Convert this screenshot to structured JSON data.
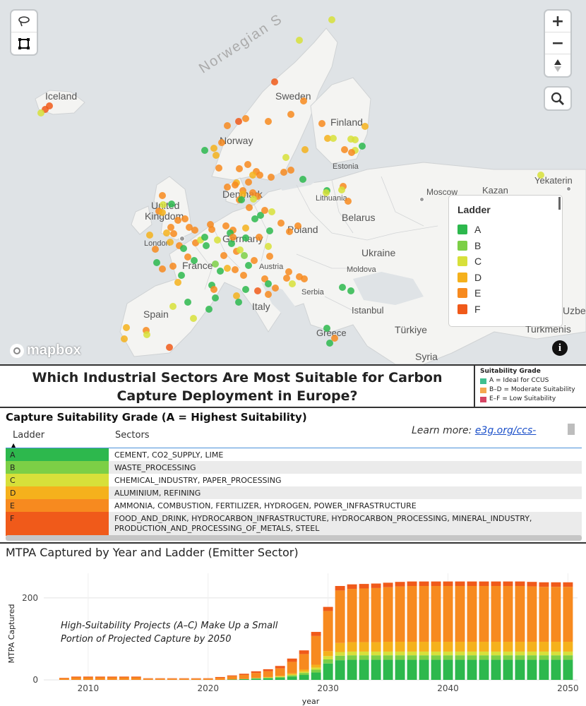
{
  "map": {
    "labels": {
      "sea": "Norwegian S",
      "iceland": "Iceland",
      "sweden": "Sweden",
      "finland": "Finland",
      "norway": "Norway",
      "estonia": "Estonia",
      "denmark": "Denmark",
      "lithuania": "Lithuania",
      "moscow": "Moscow",
      "kazan": "Kazan",
      "yekaterin": "Yekaterin",
      "uk1": "United",
      "uk2": "Kingdom",
      "belarus": "Belarus",
      "london": "London",
      "poland": "Poland",
      "germany": "Germany",
      "ukraine": "Ukraine",
      "france": "France",
      "austria": "Austria",
      "moldova": "Moldova",
      "serbia": "Serbia",
      "italy": "Italy",
      "spain": "Spain",
      "istanbul": "Istanbul",
      "turkiye": "Türkiye",
      "greece": "Greece",
      "turkmenis": "Turkmenis",
      "syria": "Syria",
      "uzbe": "Uzbe"
    },
    "controls": {
      "zoom_in": "+",
      "zoom_out": "−"
    },
    "attribution": "mapbox",
    "info": "i",
    "legend": {
      "title": "Ladder",
      "items": [
        {
          "label": "A",
          "color": "#2db84d"
        },
        {
          "label": "B",
          "color": "#7ccf46"
        },
        {
          "label": "C",
          "color": "#d7e03a"
        },
        {
          "label": "D",
          "color": "#f5b11c"
        },
        {
          "label": "E",
          "color": "#f78a1f"
        },
        {
          "label": "F",
          "color": "#f05a1a"
        }
      ]
    }
  },
  "header": {
    "title_line1": "Which Industrial Sectors Are Most Suitable for Carbon",
    "title_line2": "Capture Deployment in Europe?",
    "grade_legend": {
      "heading": "Suitability Grade",
      "items": [
        {
          "label": "A = Ideal for CCUS",
          "color": "#3fbf8f"
        },
        {
          "label": "B–D = Moderate Suitability",
          "color": "#f4a750"
        },
        {
          "label": "E–F = Low Suitability",
          "color": "#d64564"
        }
      ]
    }
  },
  "table": {
    "heading": "Capture Suitability Grade (A = Highest Suitability)",
    "learn_more_text": "Learn more: ",
    "learn_more_link": "e3g.org/ccs-",
    "col_ladder": "Ladder",
    "col_sectors": "Sectors",
    "rows": [
      {
        "ladder": "A",
        "sectors": "CEMENT, CO2_SUPPLY, LIME",
        "color": "#2db84d"
      },
      {
        "ladder": "B",
        "sectors": "WASTE_PROCESSING",
        "color": "#7ccf46"
      },
      {
        "ladder": "C",
        "sectors": "CHEMICAL_INDUSTRY, PAPER_PROCESSING",
        "color": "#d7e03a"
      },
      {
        "ladder": "D",
        "sectors": "ALUMINIUM, REFINING",
        "color": "#f5b11c"
      },
      {
        "ladder": "E",
        "sectors": "AMMONIA, COMBUSTION, FERTILIZER, HYDROGEN, POWER_INFRASTRUCTURE",
        "color": "#f78a1f"
      },
      {
        "ladder": "F",
        "sectors": "FOOD_AND_DRINK, HYDROCARBON_INFRASTRUCTURE, HYDROCARBON_PROCESSING, MINERAL_INDUSTRY, PRODUCTION_AND_PROCESSING_OF_METALS, STEEL",
        "color": "#f05a1a"
      }
    ]
  },
  "chart_data": {
    "type": "bar",
    "stacked": true,
    "title": "MTPA Captured by Year and Ladder (Emitter Sector)",
    "xlabel": "year",
    "ylabel": "MTPA Captured",
    "ylim": [
      0,
      260
    ],
    "yticks": [
      0,
      200
    ],
    "xticks": [
      2010,
      2020,
      2030,
      2040,
      2050
    ],
    "annotation_line1": "High-Suitability Projects (A–C) Make Up a Small",
    "annotation_line2": "Portion of Projected Capture by 2050",
    "x": [
      2008,
      2009,
      2010,
      2011,
      2012,
      2013,
      2014,
      2015,
      2016,
      2017,
      2018,
      2019,
      2020,
      2021,
      2022,
      2023,
      2024,
      2025,
      2026,
      2027,
      2028,
      2029,
      2030,
      2031,
      2032,
      2033,
      2034,
      2035,
      2036,
      2037,
      2038,
      2039,
      2040,
      2041,
      2042,
      2043,
      2044,
      2045,
      2046,
      2047,
      2048,
      2049,
      2050
    ],
    "series": [
      {
        "name": "A",
        "color": "#2db84d",
        "values": [
          0,
          0,
          0,
          0,
          0,
          0,
          0,
          0,
          0,
          0,
          0,
          0,
          0,
          0,
          1,
          2,
          3,
          4,
          5,
          8,
          12,
          18,
          40,
          48,
          49,
          49,
          49,
          49,
          49,
          49,
          49,
          49,
          49,
          49,
          49,
          49,
          49,
          49,
          49,
          49,
          49,
          49,
          49
        ]
      },
      {
        "name": "B",
        "color": "#7ccf46",
        "values": [
          0,
          0,
          0,
          0,
          0,
          0,
          0,
          0,
          0,
          0,
          0,
          0,
          0,
          0,
          0,
          0,
          1,
          1,
          2,
          3,
          5,
          7,
          10,
          11,
          11,
          11,
          11,
          11,
          11,
          11,
          11,
          11,
          11,
          11,
          11,
          11,
          11,
          11,
          11,
          11,
          11,
          11,
          11
        ]
      },
      {
        "name": "C",
        "color": "#d7e03a",
        "values": [
          0,
          0,
          0,
          0,
          0,
          0,
          0,
          0,
          0,
          0,
          0,
          0,
          0,
          0,
          0,
          0,
          0,
          1,
          1,
          2,
          3,
          5,
          8,
          9,
          9,
          9,
          9,
          9,
          9,
          9,
          9,
          9,
          9,
          9,
          9,
          9,
          9,
          9,
          9,
          9,
          9,
          9,
          9
        ]
      },
      {
        "name": "D",
        "color": "#f5b11c",
        "values": [
          0,
          0,
          0,
          0,
          0,
          0,
          0,
          0,
          0,
          0,
          0,
          0,
          0,
          0,
          0,
          0,
          1,
          1,
          2,
          3,
          5,
          7,
          12,
          22,
          23,
          23,
          23,
          24,
          24,
          24,
          24,
          24,
          24,
          24,
          24,
          24,
          24,
          24,
          24,
          24,
          24,
          24,
          24
        ]
      },
      {
        "name": "E",
        "color": "#f78a1f",
        "values": [
          4,
          6,
          6,
          6,
          6,
          6,
          6,
          3,
          3,
          3,
          3,
          3,
          3,
          5,
          8,
          10,
          12,
          14,
          18,
          28,
          38,
          70,
          98,
          128,
          130,
          131,
          132,
          133,
          135,
          136,
          136,
          136,
          136,
          136,
          136,
          136,
          136,
          136,
          136,
          135,
          134,
          134,
          134
        ]
      },
      {
        "name": "F",
        "color": "#f05a1a",
        "values": [
          1,
          2,
          2,
          2,
          2,
          2,
          2,
          1,
          1,
          1,
          1,
          1,
          1,
          2,
          2,
          3,
          4,
          5,
          6,
          8,
          9,
          10,
          10,
          11,
          11,
          11,
          11,
          11,
          11,
          11,
          11,
          11,
          11,
          11,
          11,
          11,
          11,
          11,
          11,
          11,
          11,
          11,
          11
        ]
      }
    ]
  }
}
